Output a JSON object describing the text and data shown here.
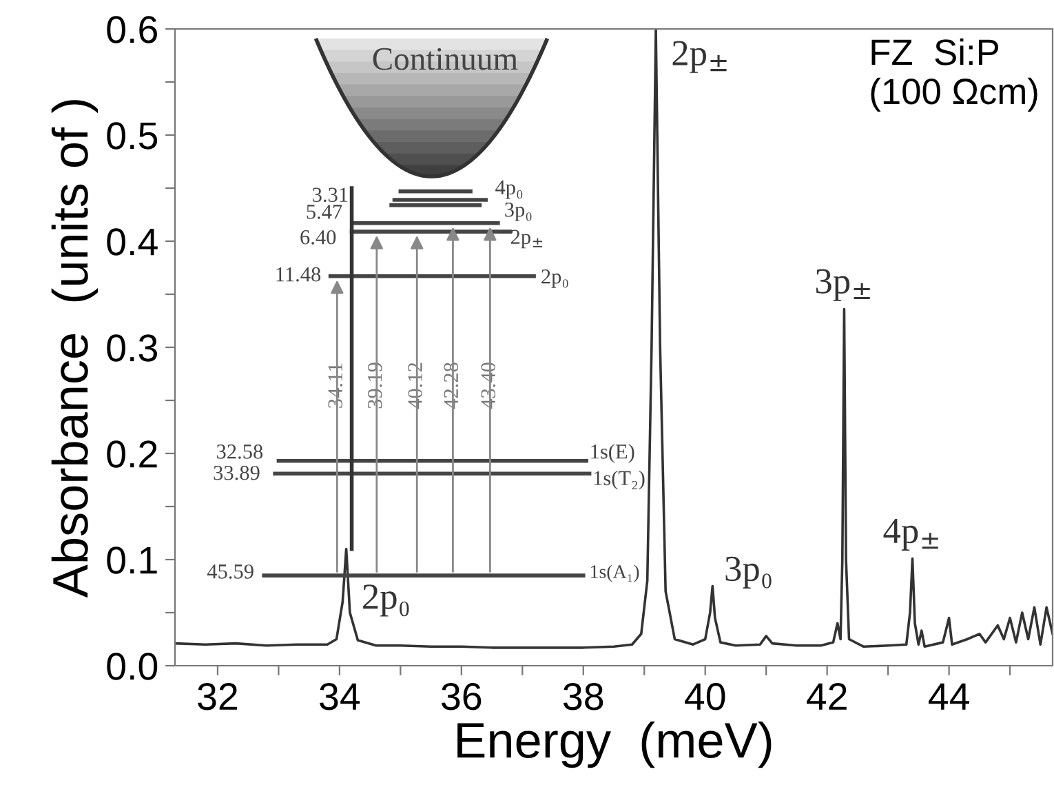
{
  "chart_data": {
    "type": "line",
    "xlabel": "Energy  (meV)",
    "ylabel": "Absorbance  (units of )",
    "x": [
      31.3,
      31.8,
      32.3,
      32.8,
      33.3,
      33.8,
      33.95,
      34.05,
      34.11,
      34.17,
      34.3,
      34.6,
      35.0,
      35.5,
      36.0,
      36.5,
      37.0,
      37.5,
      38.0,
      38.5,
      38.8,
      38.95,
      39.05,
      39.12,
      39.19,
      39.26,
      39.35,
      39.5,
      39.8,
      40.0,
      40.08,
      40.12,
      40.16,
      40.25,
      40.5,
      40.9,
      41.0,
      41.1,
      41.5,
      41.9,
      42.1,
      42.17,
      42.22,
      42.25,
      42.28,
      42.31,
      42.36,
      42.6,
      43.0,
      43.3,
      43.36,
      43.4,
      43.44,
      43.5,
      43.55,
      43.6,
      43.9,
      44.0,
      44.05,
      44.3,
      44.5,
      44.6,
      44.8,
      44.9,
      45.0,
      45.1,
      45.2,
      45.3,
      45.4,
      45.5,
      45.6,
      45.7
    ],
    "series": [
      {
        "color": "#333333",
        "values": [
          0.021,
          0.02,
          0.021,
          0.019,
          0.02,
          0.02,
          0.025,
          0.06,
          0.11,
          0.05,
          0.024,
          0.019,
          0.019,
          0.018,
          0.018,
          0.017,
          0.017,
          0.017,
          0.017,
          0.018,
          0.02,
          0.03,
          0.08,
          0.3,
          0.6,
          0.3,
          0.07,
          0.025,
          0.02,
          0.025,
          0.05,
          0.075,
          0.045,
          0.022,
          0.019,
          0.02,
          0.028,
          0.021,
          0.019,
          0.019,
          0.022,
          0.04,
          0.025,
          0.1,
          0.336,
          0.1,
          0.025,
          0.018,
          0.019,
          0.02,
          0.05,
          0.101,
          0.04,
          0.02,
          0.033,
          0.018,
          0.022,
          0.045,
          0.02,
          0.025,
          0.03,
          0.022,
          0.038,
          0.025,
          0.045,
          0.022,
          0.05,
          0.025,
          0.055,
          0.02,
          0.055,
          0.03
        ]
      }
    ],
    "xlim": [
      31.3,
      45.7
    ],
    "xticks": [
      32,
      {
        "value": 33,
        "label": null
      },
      34,
      {
        "value": 35,
        "label": null
      },
      36,
      {
        "value": 37,
        "label": null
      },
      38,
      {
        "value": 39,
        "label": null
      },
      40,
      {
        "value": 41,
        "label": null
      },
      42,
      {
        "value": 43,
        "label": null
      },
      44,
      {
        "value": 45,
        "label": null
      }
    ],
    "ylim": [
      0,
      0.6
    ],
    "yticks": [
      {
        "value": 0,
        "label": "0.0"
      },
      {
        "value": 0.05,
        "label": null
      },
      0.1,
      {
        "value": 0.15,
        "label": null
      },
      0.2,
      {
        "value": 0.25,
        "label": null
      },
      0.3,
      {
        "value": 0.35,
        "label": null
      },
      0.4,
      {
        "value": 0.45,
        "label": null
      },
      0.5,
      {
        "value": 0.55,
        "label": null
      },
      0.6
    ],
    "grid": false,
    "legend": false,
    "marker": "none",
    "line_style": "solid",
    "annotations": [
      "FZ  Si:P\n(100 Ωcm)",
      {
        "text": "2p₀",
        "x": 34.11,
        "y": 0.11
      },
      {
        "text": "2p$_{±}$",
        "x": 39.19,
        "y": 0.6
      },
      {
        "text": "3p₀",
        "x": 40.12,
        "y": 0.075
      },
      {
        "text": "3p$_{±}$",
        "x": 42.28,
        "y": 0.336
      },
      {
        "text": "4p$_{±}$",
        "x": 43.4,
        "y": 0.101
      },
      "Continuum",
      "3.31",
      "5.47",
      "6.40",
      "11.48",
      "32.58",
      "33.89",
      "45.59",
      "4p₀",
      "3p₀",
      "2p$_{±}$",
      "2p₀",
      "1s(E)",
      "1s(T₂)",
      "1s(A₁)",
      "34.11",
      "39.19",
      "40.12",
      "42.28",
      "43.40"
    ]
  }
}
